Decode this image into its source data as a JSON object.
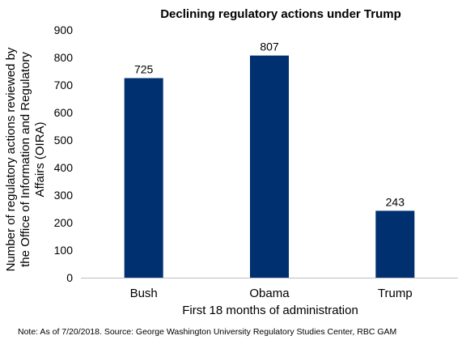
{
  "chart_data": {
    "type": "bar",
    "title": "Declining regulatory actions under Trump",
    "categories": [
      "Bush",
      "Obama",
      "Trump"
    ],
    "values": [
      725,
      807,
      243
    ],
    "data_labels": [
      "725",
      "807",
      "243"
    ],
    "xlabel": "First 18 months of administration",
    "ylabel_lines": [
      "Number of regulatory actions reviewed by",
      "the Office of Information and Regulatory",
      "Affairs (OIRA)"
    ],
    "ylim": [
      0,
      900
    ],
    "yticks": [
      "0",
      "100",
      "200",
      "300",
      "400",
      "500",
      "600",
      "700",
      "800",
      "900"
    ],
    "grid": false,
    "legend": "none",
    "bar_color": "#003070"
  },
  "note": "Note: As of 7/20/2018. Source: George Washington University Regulatory Studies Center, RBC GAM"
}
